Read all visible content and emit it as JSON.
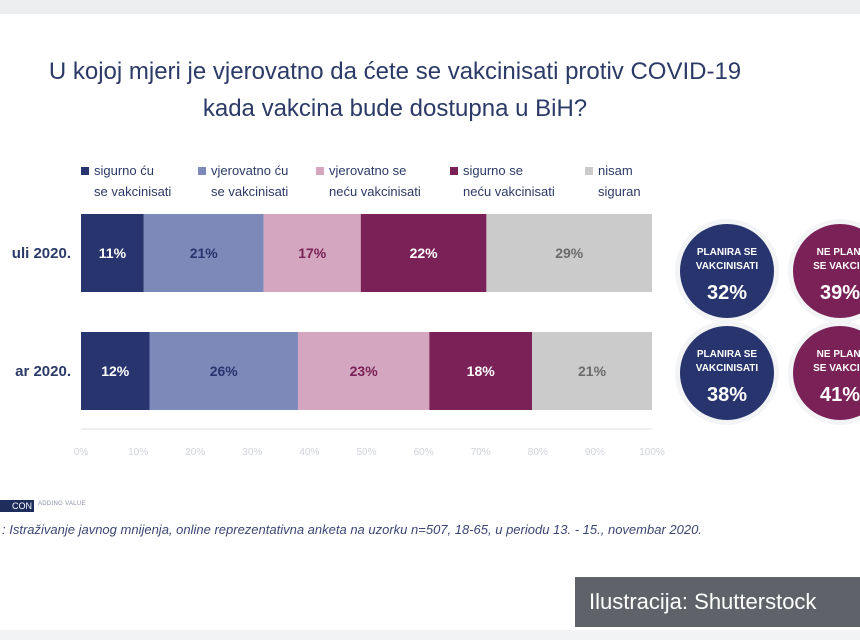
{
  "title_line1": "U kojoj mjeri je vjerovatno da ćete se vakcinisati protiv COVID-19",
  "title_line2": "kada vakcina bude dostupna u BiH?",
  "colors": {
    "sigurno_cu": "#27346e",
    "vjerovatno_cu": "#7d89b8",
    "vjerovatno_necu": "#d4a6bf",
    "sigurno_necu": "#7a2157",
    "nisam_siguran": "#cbcbcb",
    "title": "#2b3a67",
    "circle_plan": "#27346e",
    "circle_noplan": "#7a2157"
  },
  "chart_data": {
    "type": "bar",
    "orientation": "horizontal-stacked-100",
    "legend_position": "top",
    "legend": [
      {
        "line1": "sigurno ću",
        "line2": "se vakcinisati"
      },
      {
        "line1": "vjerovatno ću",
        "line2": "se vakcinisati"
      },
      {
        "line1": "vjerovatno se",
        "line2": "neću vakcinisati"
      },
      {
        "line1": "sigurno se",
        "line2": "neću vakcinisati"
      },
      {
        "line1": "nisam",
        "line2": "siguran"
      }
    ],
    "categories": [
      "uli 2020.",
      "ar 2020."
    ],
    "series": [
      {
        "values": [
          11,
          12
        ],
        "labels": [
          "11%",
          "12%"
        ]
      },
      {
        "values": [
          21,
          26
        ],
        "labels": [
          "21%",
          "26%"
        ]
      },
      {
        "values": [
          17,
          23
        ],
        "labels": [
          "17%",
          "23%"
        ]
      },
      {
        "values": [
          22,
          18
        ],
        "labels": [
          "22%",
          "18%"
        ]
      },
      {
        "values": [
          29,
          21
        ],
        "labels": [
          "29%",
          "21%"
        ]
      }
    ],
    "xlim": [
      0,
      100
    ],
    "xticks": [
      "0%",
      "10%",
      "20%",
      "30%",
      "40%",
      "50%",
      "60%",
      "70%",
      "80%",
      "90%",
      "100%"
    ],
    "grid": false
  },
  "summary_circles": [
    {
      "row": 0,
      "kind": "plan",
      "line1": "PLANIRA SE",
      "line2": "VAKCINISATI",
      "value": "32%"
    },
    {
      "row": 0,
      "kind": "noplan",
      "line1": "NE PLANI",
      "line2": "SE VAKCIN",
      "value": "39%"
    },
    {
      "row": 1,
      "kind": "plan",
      "line1": "PLANIRA SE",
      "line2": "VAKCINISATI",
      "value": "38%"
    },
    {
      "row": 1,
      "kind": "noplan",
      "line1": "NE PLANI",
      "line2": "SE VAKCIN",
      "value": "41%"
    }
  ],
  "footer": {
    "logo_text": "CON",
    "tagline": "ADDING VALUE",
    "source": ": Istraživanje javnog mnijenja, online reprezentativna anketa na uzorku n=507, 18-65, u periodu 13. - 15., novembar 2020.",
    "watermark": "Ilustracija: Shutterstock"
  }
}
